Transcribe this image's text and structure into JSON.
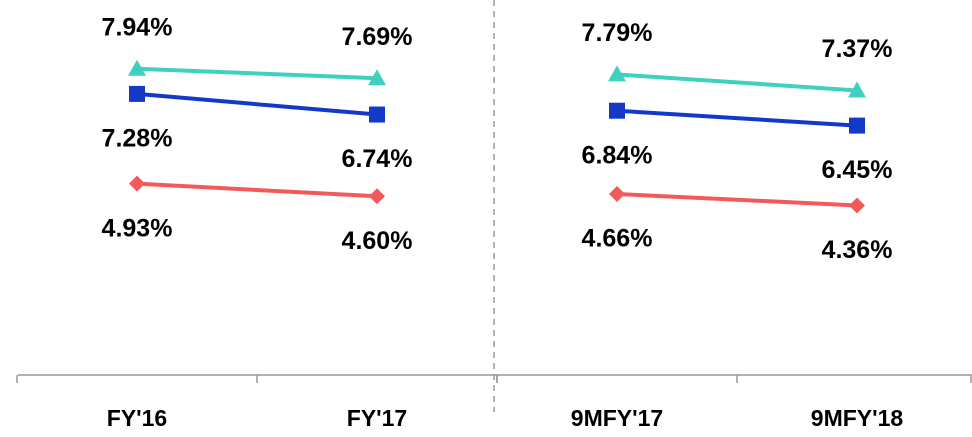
{
  "chart_data": [
    {
      "type": "line",
      "categories": [
        "FY'16",
        "FY'17"
      ],
      "ylim": [
        0,
        10
      ],
      "series": [
        {
          "color": "#3fd1bf",
          "marker": "triangle",
          "values": [
            7.94,
            7.69
          ],
          "value_labels": [
            "7.94%",
            "7.69%"
          ]
        },
        {
          "color": "#1438c8",
          "marker": "square",
          "values": [
            7.28,
            6.74
          ],
          "value_labels": [
            "7.28%",
            "6.74%"
          ]
        },
        {
          "color": "#f25a5a",
          "marker": "diamond",
          "values": [
            4.93,
            4.6
          ],
          "value_labels": [
            "4.93%",
            "4.60%"
          ]
        }
      ]
    },
    {
      "type": "line",
      "categories": [
        "9MFY'17",
        "9MFY'18"
      ],
      "ylim": [
        0,
        10
      ],
      "series": [
        {
          "color": "#3fd1bf",
          "marker": "triangle",
          "values": [
            7.79,
            7.37
          ],
          "value_labels": [
            "7.79%",
            "7.37%"
          ]
        },
        {
          "color": "#1438c8",
          "marker": "square",
          "values": [
            6.84,
            6.45
          ],
          "value_labels": [
            "6.84%",
            "6.45%"
          ]
        },
        {
          "color": "#f25a5a",
          "marker": "diamond",
          "values": [
            4.66,
            4.36
          ],
          "value_labels": [
            "4.66%",
            "4.36%"
          ]
        }
      ]
    }
  ]
}
